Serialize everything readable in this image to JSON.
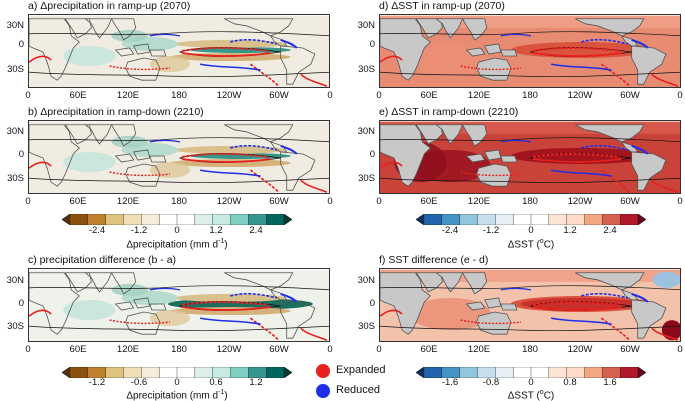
{
  "panels": [
    {
      "id": "a",
      "title": "a) Δprecipitation in ramp-up (2070)",
      "kind": "precip"
    },
    {
      "id": "b",
      "title": "b) Δprecipitation in ramp-down (2210)",
      "kind": "precip"
    },
    {
      "id": "c",
      "title": "c) precipitation difference (b - a)",
      "kind": "precipdiff"
    },
    {
      "id": "d",
      "title": "d) ΔSST in ramp-up (2070)",
      "kind": "sst"
    },
    {
      "id": "e",
      "title": "e) ΔSST in ramp-down (2210)",
      "kind": "sst_strong"
    },
    {
      "id": "f",
      "title": "f) SST difference (e - d)",
      "kind": "sstdiff"
    }
  ],
  "lat_labels": [
    "30N",
    "0",
    "30S"
  ],
  "lon_labels": [
    "0",
    "60E",
    "120E",
    "180",
    "120W",
    "60W",
    "0"
  ],
  "colorbars": [
    {
      "id": "cb_precip1",
      "ticks": [
        "-2.4",
        "-1.2",
        "0",
        "1.2",
        "2.4"
      ],
      "title": "Δprecipitation (mm d",
      "title_sup": "-1",
      "title_end": ")",
      "palette": "brbg"
    },
    {
      "id": "cb_sst1",
      "ticks": [
        "-2.4",
        "-1.2",
        "0",
        "1.2",
        "2.4"
      ],
      "title": "ΔSST (",
      "title_sup": "o",
      "title_end": "C)",
      "palette": "rdbu"
    },
    {
      "id": "cb_precip2",
      "ticks": [
        "-1.2",
        "-0.6",
        "0",
        "0.6",
        "1.2"
      ],
      "title": "Δprecipitation (mm d",
      "title_sup": "-1",
      "title_end": ")",
      "palette": "brbg"
    },
    {
      "id": "cb_sst2",
      "ticks": [
        "-1.6",
        "-0.8",
        "0",
        "0.8",
        "1.6"
      ],
      "title": "ΔSST (",
      "title_sup": "o",
      "title_end": "C)",
      "palette": "rdbu"
    }
  ],
  "legend": {
    "expanded_label": "Expanded",
    "reduced_label": "Reduced",
    "expanded_color": "#e8201f",
    "reduced_color": "#1f2ee8"
  },
  "colors": {
    "land": "#c8c8c8",
    "coast": "#555555"
  }
}
